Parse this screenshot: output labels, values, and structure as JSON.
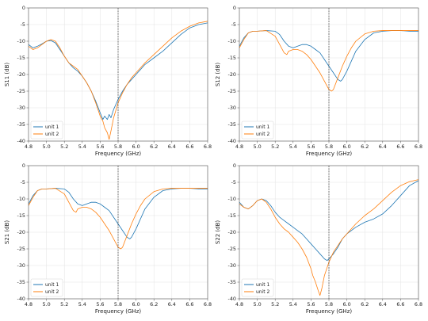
{
  "figure": {
    "grid": true,
    "layout": "2x2"
  },
  "chart_data": [
    {
      "id": "s11",
      "type": "line",
      "ylabel": "S11 (dB)",
      "xlabel": "Frequency (GHz)",
      "xlim": [
        4.8,
        6.8
      ],
      "ylim": [
        -40,
        0
      ],
      "xticks": [
        "4.8",
        "5.0",
        "5.2",
        "5.4",
        "5.6",
        "5.8",
        "6.0",
        "6.2",
        "6.4",
        "6.6",
        "6.8"
      ],
      "yticks": [
        "0",
        "-5",
        "-10",
        "-15",
        "-20",
        "-25",
        "-30",
        "-35",
        "-40"
      ],
      "vline": 5.8,
      "legend_position": "lower-left",
      "series": [
        {
          "name": "unit 1",
          "color": "#1f77b4",
          "x": [
            4.8,
            4.85,
            4.9,
            4.95,
            5.0,
            5.05,
            5.1,
            5.15,
            5.2,
            5.25,
            5.3,
            5.35,
            5.4,
            5.45,
            5.5,
            5.55,
            5.6,
            5.63,
            5.65,
            5.68,
            5.7,
            5.72,
            5.75,
            5.8,
            5.85,
            5.9,
            5.95,
            6.0,
            6.05,
            6.1,
            6.2,
            6.3,
            6.4,
            6.5,
            6.6,
            6.7,
            6.8
          ],
          "y": [
            -11,
            -12,
            -11.5,
            -10.8,
            -10,
            -9.8,
            -10.5,
            -12.5,
            -14.5,
            -16.5,
            -18,
            -19,
            -20.5,
            -22.5,
            -25,
            -28,
            -31.5,
            -33.5,
            -32.5,
            -33.5,
            -32,
            -33,
            -30.5,
            -27.5,
            -25,
            -23,
            -21.5,
            -20,
            -18.5,
            -17,
            -15,
            -13,
            -10.5,
            -8,
            -6,
            -5,
            -4.5
          ]
        },
        {
          "name": "unit 2",
          "color": "#ff7f0e",
          "x": [
            4.8,
            4.85,
            4.9,
            4.95,
            5.0,
            5.05,
            5.1,
            5.15,
            5.2,
            5.25,
            5.3,
            5.35,
            5.4,
            5.45,
            5.5,
            5.55,
            5.6,
            5.63,
            5.65,
            5.68,
            5.7,
            5.72,
            5.75,
            5.8,
            5.85,
            5.9,
            5.95,
            6.0,
            6.05,
            6.1,
            6.2,
            6.3,
            6.4,
            6.5,
            6.6,
            6.7,
            6.8
          ],
          "y": [
            -11.5,
            -12.5,
            -12,
            -11,
            -10,
            -9.5,
            -10,
            -12,
            -14.5,
            -16.5,
            -17.5,
            -18.5,
            -20.5,
            -22.5,
            -25,
            -28.5,
            -32.5,
            -34,
            -36,
            -37.5,
            -39.5,
            -37,
            -33,
            -28.5,
            -25.5,
            -23,
            -21,
            -19.5,
            -18,
            -16.5,
            -14,
            -11.5,
            -9,
            -7,
            -5.5,
            -4.5,
            -4
          ]
        }
      ]
    },
    {
      "id": "s12",
      "type": "line",
      "ylabel": "S12 (dB)",
      "xlabel": "Frequency (GHz)",
      "xlim": [
        4.8,
        6.8
      ],
      "ylim": [
        -40,
        0
      ],
      "xticks": [
        "4.8",
        "5.0",
        "5.2",
        "5.4",
        "5.6",
        "5.8",
        "6.0",
        "6.2",
        "6.4",
        "6.6",
        "6.8"
      ],
      "yticks": [
        "0",
        "-5",
        "-10",
        "-15",
        "-20",
        "-25",
        "-30",
        "-35",
        "-40"
      ],
      "vline": 5.8,
      "legend_position": "lower-left",
      "series": [
        {
          "name": "unit 1",
          "color": "#1f77b4",
          "x": [
            4.8,
            4.85,
            4.9,
            4.95,
            5.0,
            5.1,
            5.2,
            5.25,
            5.3,
            5.35,
            5.4,
            5.45,
            5.5,
            5.55,
            5.6,
            5.65,
            5.7,
            5.75,
            5.8,
            5.85,
            5.9,
            5.93,
            5.95,
            6.0,
            6.05,
            6.1,
            6.2,
            6.3,
            6.4,
            6.5,
            6.6,
            6.7,
            6.8
          ],
          "y": [
            -11.5,
            -9,
            -7.5,
            -7,
            -7,
            -6.8,
            -7,
            -8,
            -10,
            -11.5,
            -12,
            -11.5,
            -11,
            -11,
            -11.5,
            -12.5,
            -13.5,
            -15.5,
            -17.5,
            -19.5,
            -21.5,
            -22,
            -21.5,
            -19,
            -16,
            -13,
            -9.5,
            -7.5,
            -7,
            -6.8,
            -6.8,
            -7,
            -7
          ]
        },
        {
          "name": "unit 2",
          "color": "#ff7f0e",
          "x": [
            4.8,
            4.85,
            4.9,
            4.95,
            5.0,
            5.1,
            5.2,
            5.25,
            5.3,
            5.33,
            5.35,
            5.4,
            5.45,
            5.5,
            5.55,
            5.6,
            5.65,
            5.7,
            5.75,
            5.8,
            5.83,
            5.85,
            5.9,
            5.95,
            6.0,
            6.05,
            6.1,
            6.2,
            6.3,
            6.4,
            6.5,
            6.6,
            6.7,
            6.8
          ],
          "y": [
            -12,
            -9.5,
            -7.5,
            -7,
            -7,
            -6.8,
            -8.5,
            -11,
            -13.5,
            -14,
            -13,
            -12.5,
            -12.5,
            -13,
            -14,
            -15.5,
            -17.5,
            -19.5,
            -22,
            -24.5,
            -25,
            -24.5,
            -21,
            -17.5,
            -14.5,
            -12,
            -10,
            -7.8,
            -7,
            -6.8,
            -6.8,
            -6.8,
            -6.8,
            -6.8
          ]
        }
      ]
    },
    {
      "id": "s21",
      "type": "line",
      "ylabel": "S21 (dB)",
      "xlabel": "Frequency (GHz)",
      "xlim": [
        4.8,
        6.8
      ],
      "ylim": [
        -40,
        0
      ],
      "xticks": [
        "4.8",
        "5.0",
        "5.2",
        "5.4",
        "5.6",
        "5.8",
        "6.0",
        "6.2",
        "6.4",
        "6.6",
        "6.8"
      ],
      "yticks": [
        "0",
        "-5",
        "-10",
        "-15",
        "-20",
        "-25",
        "-30",
        "-35",
        "-40"
      ],
      "vline": 5.8,
      "legend_position": "lower-left",
      "series": [
        {
          "name": "unit 1",
          "color": "#1f77b4",
          "x": [
            4.8,
            4.85,
            4.9,
            4.95,
            5.0,
            5.1,
            5.2,
            5.25,
            5.3,
            5.35,
            5.4,
            5.45,
            5.5,
            5.55,
            5.6,
            5.65,
            5.7,
            5.75,
            5.8,
            5.85,
            5.9,
            5.93,
            5.95,
            6.0,
            6.05,
            6.1,
            6.2,
            6.3,
            6.4,
            6.5,
            6.6,
            6.7,
            6.8
          ],
          "y": [
            -11.5,
            -9,
            -7.5,
            -7,
            -7,
            -6.8,
            -7,
            -8,
            -10,
            -11.5,
            -12,
            -11.5,
            -11,
            -11,
            -11.5,
            -12.5,
            -13.5,
            -15.5,
            -17.5,
            -19.5,
            -21.5,
            -22,
            -21.5,
            -19,
            -16,
            -13,
            -9.5,
            -7.5,
            -7,
            -6.8,
            -6.8,
            -7,
            -7
          ]
        },
        {
          "name": "unit 2",
          "color": "#ff7f0e",
          "x": [
            4.8,
            4.85,
            4.9,
            4.95,
            5.0,
            5.1,
            5.2,
            5.25,
            5.3,
            5.33,
            5.35,
            5.4,
            5.45,
            5.5,
            5.55,
            5.6,
            5.65,
            5.7,
            5.75,
            5.8,
            5.83,
            5.85,
            5.9,
            5.95,
            6.0,
            6.05,
            6.1,
            6.2,
            6.3,
            6.4,
            6.5,
            6.6,
            6.7,
            6.8
          ],
          "y": [
            -12,
            -9.5,
            -7.5,
            -7,
            -7,
            -6.8,
            -8.5,
            -11,
            -13.5,
            -14,
            -13,
            -12.5,
            -12.5,
            -13,
            -14,
            -15.5,
            -17.5,
            -19.5,
            -22,
            -24.5,
            -25,
            -24.5,
            -21,
            -17.5,
            -14.5,
            -12,
            -10,
            -7.8,
            -7,
            -6.8,
            -6.8,
            -6.8,
            -6.8,
            -6.8
          ]
        }
      ]
    },
    {
      "id": "s22",
      "type": "line",
      "ylabel": "S22 (dB)",
      "xlabel": "Frequency (GHz)",
      "xlim": [
        4.8,
        6.8
      ],
      "ylim": [
        -40,
        0
      ],
      "xticks": [
        "4.8",
        "5.0",
        "5.2",
        "5.4",
        "5.6",
        "5.8",
        "6.0",
        "6.2",
        "6.4",
        "6.6",
        "6.8"
      ],
      "yticks": [
        "0",
        "-5",
        "-10",
        "-15",
        "-20",
        "-25",
        "-30",
        "-35",
        "-40"
      ],
      "vline": 5.8,
      "legend_position": "lower-left",
      "series": [
        {
          "name": "unit 1",
          "color": "#1f77b4",
          "x": [
            4.8,
            4.85,
            4.9,
            4.95,
            5.0,
            5.05,
            5.1,
            5.15,
            5.2,
            5.25,
            5.3,
            5.35,
            5.4,
            5.45,
            5.5,
            5.55,
            5.6,
            5.65,
            5.7,
            5.75,
            5.78,
            5.8,
            5.85,
            5.9,
            5.95,
            6.0,
            6.1,
            6.2,
            6.3,
            6.4,
            6.5,
            6.6,
            6.7,
            6.8
          ],
          "y": [
            -11,
            -12.5,
            -13,
            -12,
            -10.5,
            -10,
            -10.5,
            -12,
            -14,
            -15.5,
            -16.5,
            -17.5,
            -18.5,
            -19.5,
            -20.5,
            -22,
            -23.5,
            -25,
            -26.5,
            -28,
            -28.5,
            -28,
            -26.5,
            -24.5,
            -22,
            -20.5,
            -18.5,
            -17,
            -16,
            -14.5,
            -12,
            -9,
            -6,
            -4.5
          ]
        },
        {
          "name": "unit 2",
          "color": "#ff7f0e",
          "x": [
            4.8,
            4.85,
            4.9,
            4.95,
            5.0,
            5.05,
            5.1,
            5.15,
            5.2,
            5.25,
            5.3,
            5.35,
            5.4,
            5.45,
            5.5,
            5.55,
            5.6,
            5.62,
            5.65,
            5.68,
            5.7,
            5.72,
            5.75,
            5.8,
            5.85,
            5.9,
            5.95,
            6.0,
            6.1,
            6.2,
            6.3,
            6.4,
            6.5,
            6.6,
            6.7,
            6.8
          ],
          "y": [
            -11.5,
            -12.5,
            -13,
            -12,
            -10.5,
            -10,
            -11,
            -13,
            -15.5,
            -17.5,
            -19,
            -20,
            -21.5,
            -23,
            -25,
            -27.5,
            -31,
            -33,
            -35,
            -37.5,
            -39,
            -37,
            -33,
            -29,
            -26,
            -24,
            -22,
            -20.5,
            -17.5,
            -15,
            -13,
            -10.5,
            -8,
            -6,
            -4.8,
            -4.2
          ]
        }
      ]
    }
  ]
}
